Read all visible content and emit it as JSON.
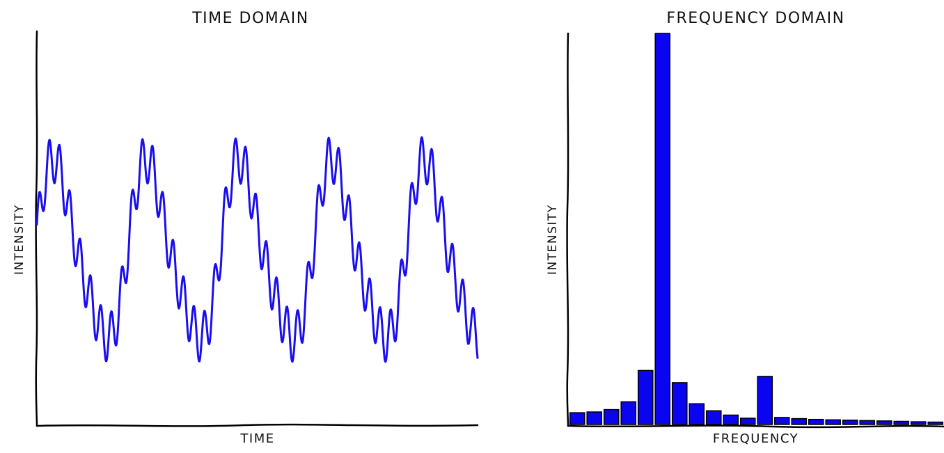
{
  "colors": {
    "series": "#1a0ef0",
    "bar": "#0a05ee",
    "axis": "#000000",
    "background": "#ffffff"
  },
  "chart_data": [
    {
      "type": "line",
      "title": "TIME DOMAIN",
      "xlabel": "TIME",
      "ylabel": "INTENSITY",
      "style": "xkcd",
      "grid": false,
      "ticks": false,
      "xlim": [
        0,
        1
      ],
      "ylim": [
        -2.0,
        2.6
      ],
      "series": [
        {
          "color": "#1a0ef0",
          "components": [
            {
              "cycles": 4.75,
              "amplitude": 1.0,
              "phase_deg": 14
            },
            {
              "cycles": 42.6,
              "amplitude": 0.28,
              "phase_deg": 22
            },
            {
              "cycles": 9.5,
              "amplitude": 0.17,
              "phase_deg": 0
            }
          ]
        }
      ]
    },
    {
      "type": "bar",
      "title": "FREQUENCY DOMAIN",
      "xlabel": "FREQUENCY",
      "ylabel": "INTENSITY",
      "style": "xkcd",
      "grid": false,
      "ticks": false,
      "ylim": [
        0,
        100
      ],
      "values": [
        3.0,
        3.2,
        3.8,
        5.8,
        13.8,
        100,
        10.7,
        5.3,
        3.5,
        2.4,
        1.6,
        12.3,
        1.8,
        1.5,
        1.3,
        1.2,
        1.1,
        1.0,
        0.9,
        0.8,
        0.7,
        0.6
      ]
    }
  ]
}
